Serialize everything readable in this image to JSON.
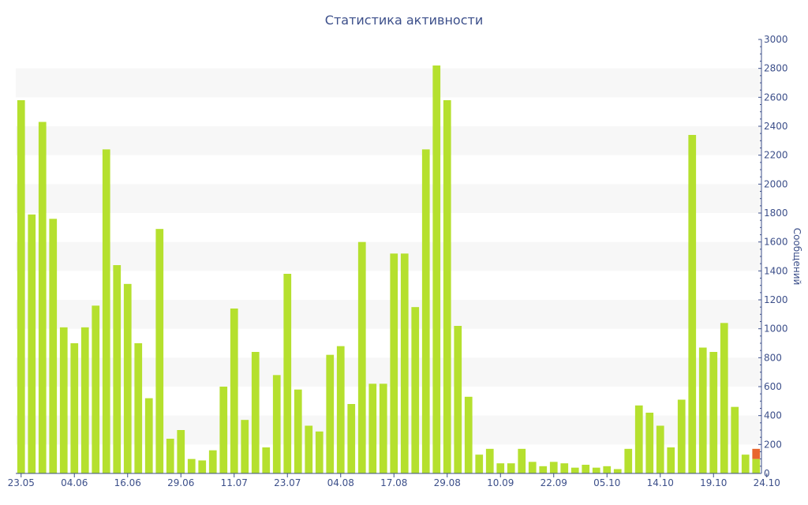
{
  "chart_data": {
    "type": "bar",
    "title": "Статистика активности",
    "ylabel": "Сообщений",
    "xlabel": "",
    "ylim": [
      0,
      3000
    ],
    "y_ticks": [
      0,
      200,
      400,
      600,
      800,
      1000,
      1200,
      1400,
      1600,
      1800,
      2000,
      2200,
      2400,
      2600,
      2800,
      3000
    ],
    "x_tick_labels": [
      {
        "index": 0,
        "label": "23.05"
      },
      {
        "index": 5,
        "label": "04.06"
      },
      {
        "index": 10,
        "label": "16.06"
      },
      {
        "index": 15,
        "label": "29.06"
      },
      {
        "index": 20,
        "label": "11.07"
      },
      {
        "index": 25,
        "label": "23.07"
      },
      {
        "index": 30,
        "label": "04.08"
      },
      {
        "index": 35,
        "label": "17.08"
      },
      {
        "index": 40,
        "label": "29.08"
      },
      {
        "index": 45,
        "label": "10.09"
      },
      {
        "index": 50,
        "label": "22.09"
      },
      {
        "index": 55,
        "label": "05.10"
      },
      {
        "index": 60,
        "label": "14.10"
      },
      {
        "index": 65,
        "label": "19.10"
      },
      {
        "index": 70,
        "label": "24.10"
      }
    ],
    "grid": "alternating horizontal bands",
    "y_axis_position": "right",
    "colors": {
      "bar": "#b5e02e",
      "highlight": "#e8652e",
      "text": "#3c4f8a",
      "band": "#f7f7f7",
      "axis": "#3c4f8a"
    },
    "series": [
      {
        "values": [
          2580,
          1790,
          2430,
          1760,
          1010,
          900,
          1010,
          1160,
          2240,
          1440,
          1310,
          900,
          520,
          1690,
          240,
          300,
          100,
          90,
          160,
          600,
          1140,
          370,
          840,
          180,
          680,
          1380,
          580,
          330,
          290,
          820,
          880,
          480,
          1600,
          620,
          620,
          1520,
          1520,
          1150,
          2240,
          2820,
          2580,
          1020,
          530,
          130,
          170,
          70,
          70,
          170,
          80,
          50,
          80,
          70,
          40,
          60,
          40,
          50,
          30,
          170,
          470,
          420,
          330,
          180,
          510,
          2340,
          870,
          840,
          1040,
          460,
          130,
          100
        ]
      },
      {
        "values": [
          0,
          0,
          0,
          0,
          0,
          0,
          0,
          0,
          0,
          0,
          0,
          0,
          0,
          0,
          0,
          0,
          0,
          0,
          0,
          0,
          0,
          0,
          0,
          0,
          0,
          0,
          0,
          0,
          0,
          0,
          0,
          0,
          0,
          0,
          0,
          0,
          0,
          0,
          0,
          0,
          0,
          0,
          0,
          0,
          0,
          0,
          0,
          0,
          0,
          0,
          0,
          0,
          0,
          0,
          0,
          0,
          0,
          0,
          0,
          0,
          0,
          0,
          0,
          0,
          0,
          0,
          0,
          0,
          0,
          70
        ]
      }
    ]
  }
}
